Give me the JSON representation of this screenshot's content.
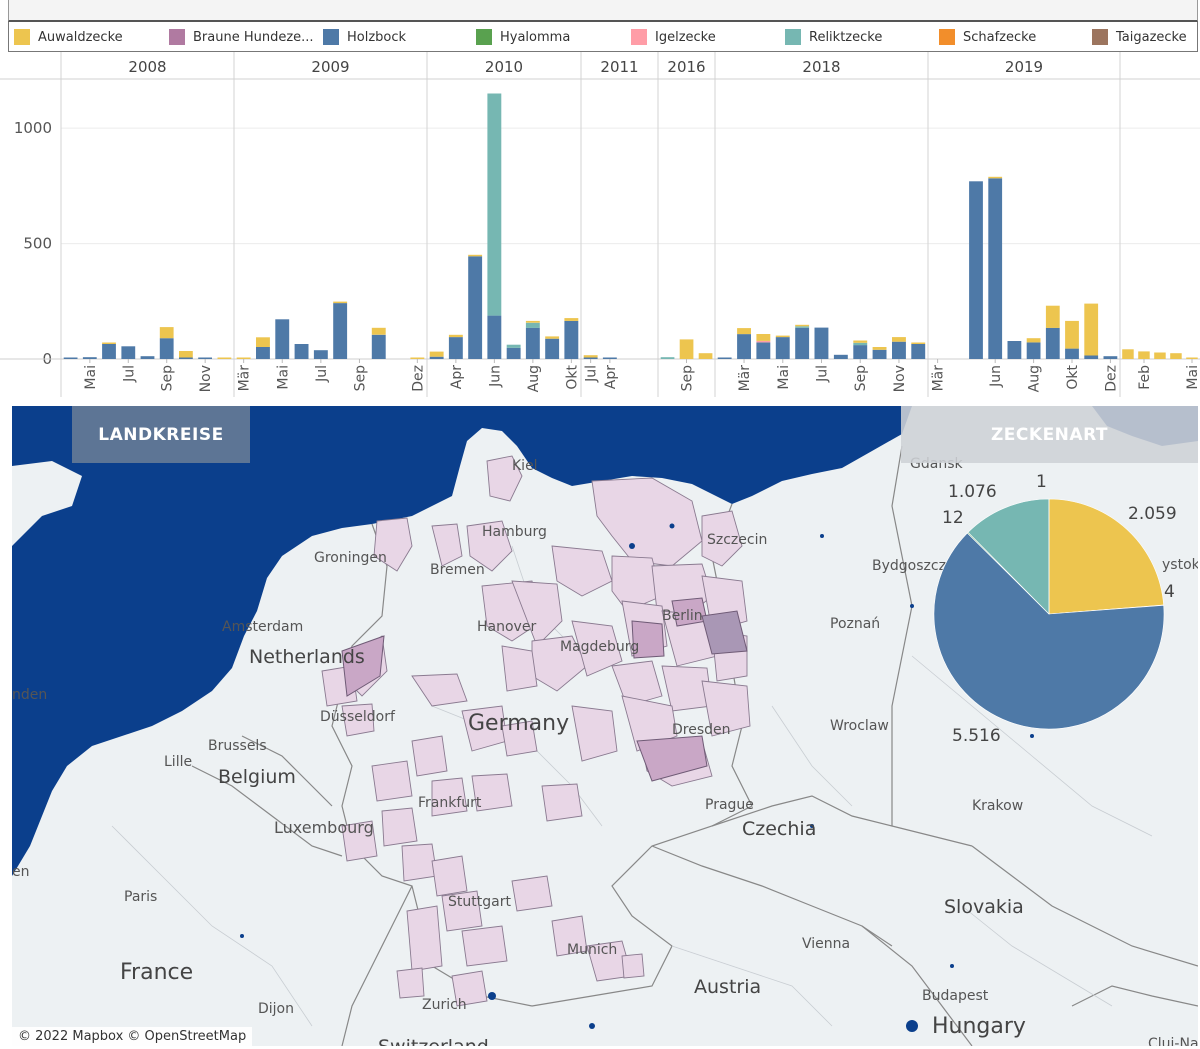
{
  "legend": [
    {
      "label": "Auwaldzecke",
      "color": "#edc54f"
    },
    {
      "label": "Braune Hundeze...",
      "color": "#b07aa1"
    },
    {
      "label": "Holzbock",
      "color": "#4e79a7"
    },
    {
      "label": "Hyalomma",
      "color": "#59a14f"
    },
    {
      "label": "Igelzecke",
      "color": "#ff9da7"
    },
    {
      "label": "Reliktzecke",
      "color": "#76b7b2"
    },
    {
      "label": "Schafzecke",
      "color": "#f28e2b"
    },
    {
      "label": "Taigazecke",
      "color": "#9c755f"
    }
  ],
  "chart_data": {
    "type": "bar",
    "stacked": true,
    "y_ticks": [
      0,
      500,
      1000
    ],
    "ylim": [
      0,
      1200
    ],
    "years": [
      "2008",
      "2009",
      "2010",
      "2011",
      "2016",
      "2018",
      "2019",
      ""
    ],
    "month_labels": [
      {
        "label": "Mai",
        "year": "2008"
      },
      {
        "label": "Jul",
        "year": "2008"
      },
      {
        "label": "Sep",
        "year": "2008"
      },
      {
        "label": "Nov",
        "year": "2008"
      },
      {
        "label": "Mär",
        "year": "2009"
      },
      {
        "label": "Mai",
        "year": "2009"
      },
      {
        "label": "Jul",
        "year": "2009"
      },
      {
        "label": "Sep",
        "year": "2009"
      },
      {
        "label": "Dez",
        "year": "2009"
      },
      {
        "label": "Apr",
        "year": "2010"
      },
      {
        "label": "Jun",
        "year": "2010"
      },
      {
        "label": "Aug",
        "year": "2010"
      },
      {
        "label": "Okt",
        "year": "2010"
      },
      {
        "label": "Apr",
        "year": "2011"
      },
      {
        "label": "Jul",
        "year": "2011"
      },
      {
        "label": "Sep",
        "year": "2016"
      },
      {
        "label": "Mär",
        "year": "2018"
      },
      {
        "label": "Mai",
        "year": "2018"
      },
      {
        "label": "Jul",
        "year": "2018"
      },
      {
        "label": "Sep",
        "year": "2018"
      },
      {
        "label": "Nov",
        "year": "2018"
      },
      {
        "label": "Mär",
        "year": "2019"
      },
      {
        "label": "Jun",
        "year": "2019"
      },
      {
        "label": "Aug",
        "year": "2019"
      },
      {
        "label": "Okt",
        "year": "2019"
      },
      {
        "label": "Dez",
        "year": "2019"
      },
      {
        "label": "Feb",
        "year": ""
      },
      {
        "label": "Mai",
        "year": ""
      }
    ],
    "series_order": [
      "Holzbock",
      "Reliktzecke",
      "Igelzecke",
      "Auwaldzecke"
    ],
    "bars": [
      {
        "year": "2008",
        "month": "Apr",
        "Holzbock": 4
      },
      {
        "year": "2008",
        "month": "Mai",
        "Holzbock": 8
      },
      {
        "year": "2008",
        "month": "Jun",
        "Holzbock": 65,
        "Auwaldzecke": 2
      },
      {
        "year": "2008",
        "month": "Jul",
        "Holzbock": 55
      },
      {
        "year": "2008",
        "month": "Aug",
        "Holzbock": 12
      },
      {
        "year": "2008",
        "month": "Sep",
        "Holzbock": 90,
        "Auwaldzecke": 48
      },
      {
        "year": "2008",
        "month": "Okt",
        "Holzbock": 5,
        "Auwaldzecke": 28
      },
      {
        "year": "2008",
        "month": "Nov",
        "Holzbock": 3
      },
      {
        "year": "2008",
        "month": "Dez",
        "Auwaldzecke": 4
      },
      {
        "year": "2009",
        "month": "Mär",
        "Auwaldzecke": 4
      },
      {
        "year": "2009",
        "month": "Apr",
        "Holzbock": 52,
        "Auwaldzecke": 42
      },
      {
        "year": "2009",
        "month": "Mai",
        "Holzbock": 172
      },
      {
        "year": "2009",
        "month": "Jun",
        "Holzbock": 65
      },
      {
        "year": "2009",
        "month": "Jul",
        "Holzbock": 38
      },
      {
        "year": "2009",
        "month": "Aug",
        "Holzbock": 242,
        "Auwaldzecke": 4
      },
      {
        "year": "2009",
        "month": "Okt",
        "Holzbock": 105,
        "Auwaldzecke": 30
      },
      {
        "year": "2009",
        "month": "Dez",
        "Auwaldzecke": 4
      },
      {
        "year": "2010",
        "month": "Mär",
        "Holzbock": 10,
        "Auwaldzecke": 22
      },
      {
        "year": "2010",
        "month": "Apr",
        "Holzbock": 95,
        "Auwaldzecke": 10
      },
      {
        "year": "2010",
        "month": "Mai",
        "Holzbock": 445,
        "Auwaldzecke": 4
      },
      {
        "year": "2010",
        "month": "Jun",
        "Holzbock": 188,
        "Reliktzecke": 962
      },
      {
        "year": "2010",
        "month": "Jul",
        "Holzbock": 48,
        "Reliktzecke": 14
      },
      {
        "year": "2010",
        "month": "Aug",
        "Holzbock": 135,
        "Reliktzecke": 22,
        "Auwaldzecke": 8
      },
      {
        "year": "2010",
        "month": "Sep",
        "Holzbock": 88,
        "Auwaldzecke": 10
      },
      {
        "year": "2010",
        "month": "Okt",
        "Holzbock": 165,
        "Auwaldzecke": 12
      },
      {
        "year": "2011",
        "month": "Mär",
        "Holzbock": 4,
        "Auwaldzecke": 10
      },
      {
        "year": "2011",
        "month": "Apr",
        "Holzbock": 3
      },
      {
        "year": "2016",
        "month": "Jul",
        "Reliktzecke": 8
      },
      {
        "year": "2016",
        "month": "Sep",
        "Auwaldzecke": 85
      },
      {
        "year": "2016",
        "month": "Okt",
        "Auwaldzecke": 25
      },
      {
        "year": "2018",
        "month": "Feb",
        "Holzbock": 6
      },
      {
        "year": "2018",
        "month": "Mär",
        "Holzbock": 108,
        "Auwaldzecke": 26
      },
      {
        "year": "2018",
        "month": "Apr",
        "Holzbock": 72,
        "Igelzecke": 4,
        "Auwaldzecke": 30
      },
      {
        "year": "2018",
        "month": "Mai",
        "Holzbock": 95,
        "Auwaldzecke": 5
      },
      {
        "year": "2018",
        "month": "Jun",
        "Holzbock": 135,
        "Reliktzecke": 3,
        "Auwaldzecke": 3
      },
      {
        "year": "2018",
        "month": "Jul",
        "Holzbock": 136
      },
      {
        "year": "2018",
        "month": "Aug",
        "Holzbock": 18
      },
      {
        "year": "2018",
        "month": "Sep",
        "Holzbock": 60,
        "Reliktzecke": 10,
        "Auwaldzecke": 10
      },
      {
        "year": "2018",
        "month": "Okt",
        "Holzbock": 40,
        "Auwaldzecke": 12
      },
      {
        "year": "2018",
        "month": "Nov",
        "Holzbock": 75,
        "Auwaldzecke": 20
      },
      {
        "year": "2018",
        "month": "Dez",
        "Holzbock": 65,
        "Auwaldzecke": 4
      },
      {
        "year": "2019",
        "month": "Mai",
        "Holzbock": 770
      },
      {
        "year": "2019",
        "month": "Jun",
        "Holzbock": 783,
        "Auwaldzecke": 6
      },
      {
        "year": "2019",
        "month": "Jul",
        "Holzbock": 78
      },
      {
        "year": "2019",
        "month": "Aug",
        "Holzbock": 72,
        "Auwaldzecke": 18
      },
      {
        "year": "2019",
        "month": "Sep",
        "Holzbock": 135,
        "Auwaldzecke": 96
      },
      {
        "year": "2019",
        "month": "Okt",
        "Holzbock": 45,
        "Auwaldzecke": 120
      },
      {
        "year": "2019",
        "month": "Nov",
        "Holzbock": 15,
        "Auwaldzecke": 225
      },
      {
        "year": "2019",
        "month": "Dez",
        "Holzbock": 12
      },
      {
        "year": "",
        "month": "Jan",
        "Auwaldzecke": 42
      },
      {
        "year": "",
        "month": "Feb",
        "Auwaldzecke": 33
      },
      {
        "year": "",
        "month": "Mär",
        "Auwaldzecke": 28
      },
      {
        "year": "",
        "month": "Apr",
        "Auwaldzecke": 25
      },
      {
        "year": "",
        "month": "Mai",
        "Auwaldzecke": 5
      }
    ]
  },
  "map": {
    "btn_landkreise": "LANDKREISE",
    "btn_zeckenart": "ZECKENART",
    "copyright": "© 2022 Mapbox © OpenStreetMap",
    "cities": [
      "Kiel",
      "Hamburg",
      "Groningen",
      "Bremen",
      "Szczecin",
      "Gdansk",
      "Bydgoszcz",
      "Amsterdam",
      "Hanover",
      "Berlin",
      "Magdeburg",
      "Poznań",
      "Düsseldorf",
      "Dresden",
      "Wroclaw",
      "Brussels",
      "Lille",
      "Frankfurt",
      "Prague",
      "Krakow",
      "Luxembourg",
      "Paris",
      "Stuttgart",
      "Vienna",
      "Munich",
      "Dijon",
      "Zurich",
      "Budapest",
      "Cluj-Nap",
      "nden",
      "en",
      "ystok"
    ],
    "countries": [
      "Netherlands",
      "Germany",
      "Belgium",
      "Czechia",
      "France",
      "Austria",
      "Slovakia",
      "Hungary",
      "Switzerland"
    ],
    "pie": {
      "slices": [
        {
          "name": "Auwaldzecke",
          "value": 2059,
          "label": "2.059"
        },
        {
          "name": "Igelzecke",
          "value": 4,
          "label": "4"
        },
        {
          "name": "Holzbock",
          "value": 5516,
          "label": "5.516"
        },
        {
          "name": "Hyalomma",
          "value": 12,
          "label": "12"
        },
        {
          "name": "Reliktzecke",
          "value": 1076,
          "label": "1.076"
        },
        {
          "name": "Braune Hundezecke",
          "value": 1,
          "label": "1"
        }
      ]
    }
  }
}
